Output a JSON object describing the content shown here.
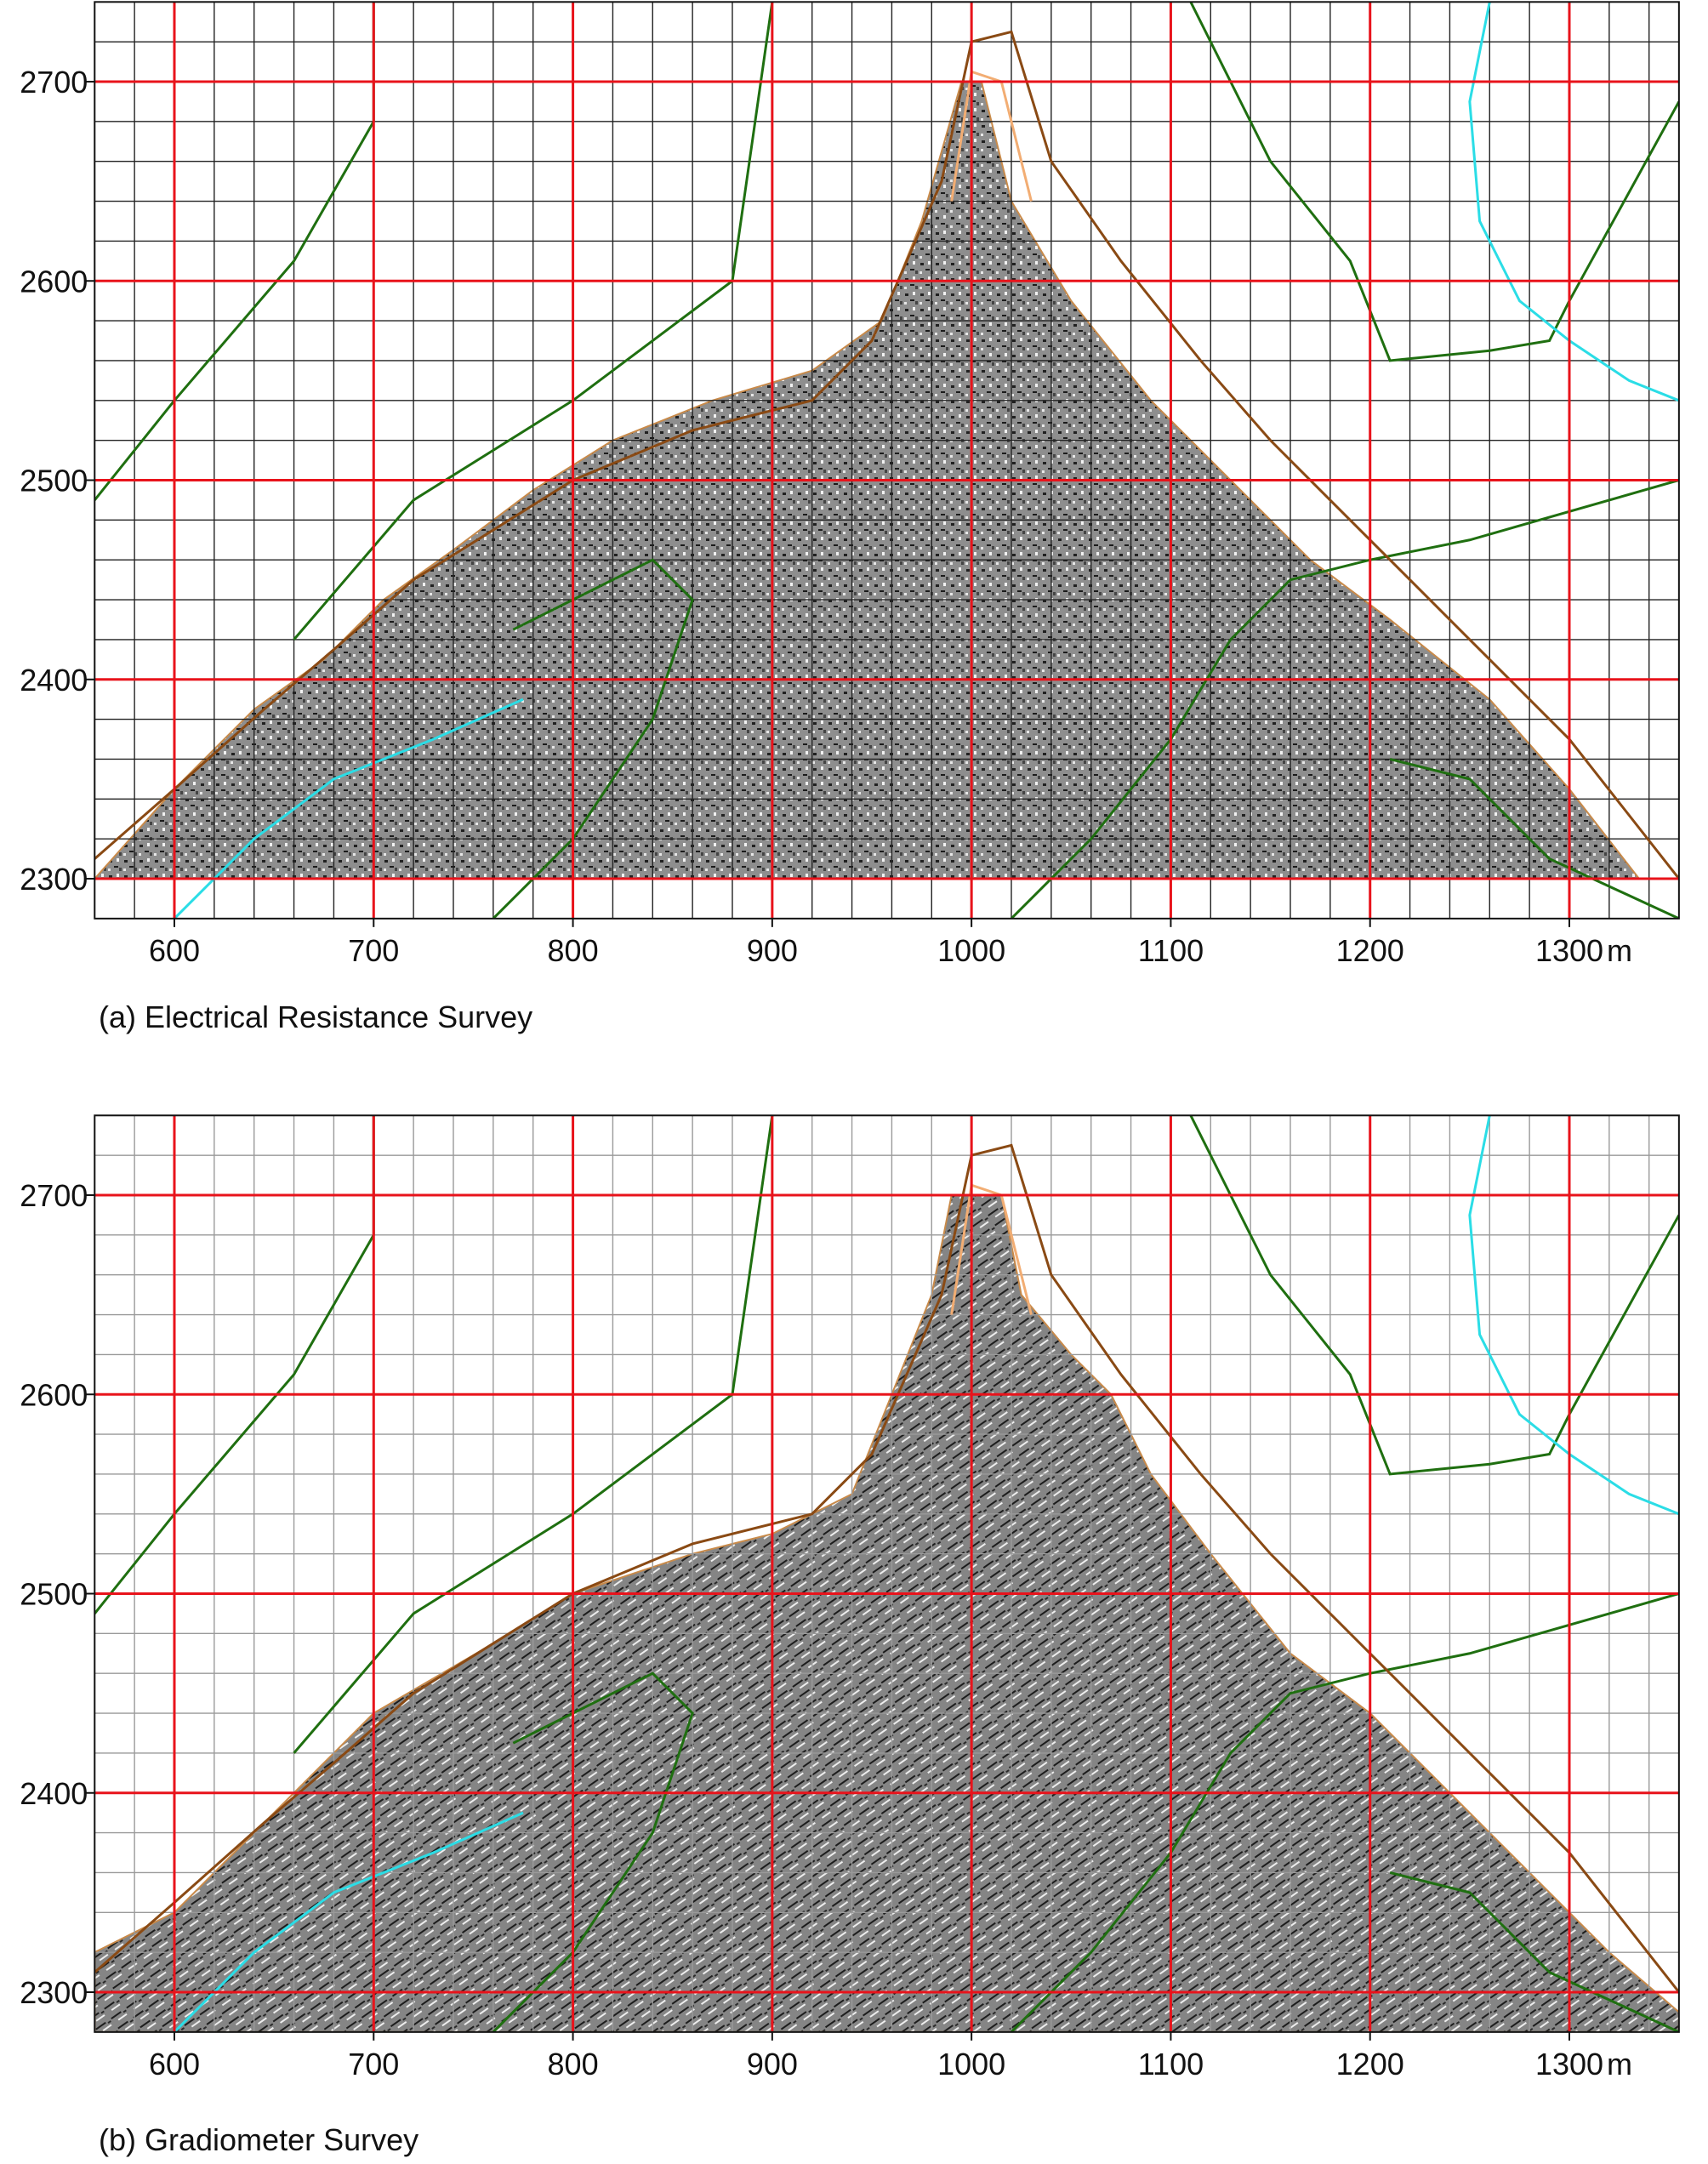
{
  "chart_data": [
    {
      "type": "heatmap",
      "panel_label": "(a) Electrical Resistance Survey",
      "x_ticks": [
        600,
        700,
        800,
        900,
        1000,
        1100,
        1200,
        1300
      ],
      "x_unit": "m",
      "y_ticks": [
        2300,
        2400,
        2500,
        2600,
        2700
      ],
      "xlim": [
        560,
        1355
      ],
      "ylim": [
        2280,
        2740
      ],
      "major_grid_step": 100,
      "minor_grid_step": 20,
      "survey_boundary": [
        [
          560,
          2300
        ],
        [
          600,
          2345
        ],
        [
          640,
          2385
        ],
        [
          675,
          2410
        ],
        [
          705,
          2440
        ],
        [
          740,
          2465
        ],
        [
          780,
          2495
        ],
        [
          820,
          2520
        ],
        [
          870,
          2540
        ],
        [
          920,
          2555
        ],
        [
          955,
          2580
        ],
        [
          975,
          2630
        ],
        [
          995,
          2700
        ],
        [
          1005,
          2700
        ],
        [
          1020,
          2640
        ],
        [
          1050,
          2590
        ],
        [
          1090,
          2540
        ],
        [
          1130,
          2500
        ],
        [
          1170,
          2460
        ],
        [
          1210,
          2430
        ],
        [
          1260,
          2390
        ],
        [
          1300,
          2345
        ],
        [
          1335,
          2300
        ]
      ],
      "contours": [
        {
          "color": "#1f6f10",
          "points": [
            [
              560,
              2490
            ],
            [
              600,
              2540
            ],
            [
              660,
              2610
            ],
            [
              700,
              2680
            ],
            [
              700,
              2740
            ]
          ]
        },
        {
          "color": "#1f6f10",
          "points": [
            [
              660,
              2420
            ],
            [
              720,
              2490
            ],
            [
              800,
              2540
            ],
            [
              880,
              2600
            ],
            [
              900,
              2740
            ]
          ]
        },
        {
          "color": "#1f6f10",
          "points": [
            [
              770,
              2425
            ],
            [
              840,
              2460
            ],
            [
              860,
              2440
            ],
            [
              840,
              2380
            ],
            [
              800,
              2320
            ],
            [
              760,
              2280
            ]
          ]
        },
        {
          "color": "#1f6f10",
          "points": [
            [
              1020,
              2280
            ],
            [
              1060,
              2320
            ],
            [
              1100,
              2370
            ],
            [
              1130,
              2420
            ],
            [
              1160,
              2450
            ],
            [
              1200,
              2460
            ],
            [
              1250,
              2470
            ],
            [
              1355,
              2500
            ]
          ]
        },
        {
          "color": "#1f6f10",
          "points": [
            [
              1110,
              2740
            ],
            [
              1150,
              2660
            ],
            [
              1190,
              2610
            ],
            [
              1210,
              2560
            ],
            [
              1260,
              2565
            ],
            [
              1290,
              2570
            ],
            [
              1300,
              2590
            ],
            [
              1355,
              2690
            ]
          ]
        },
        {
          "color": "#1f6f10",
          "points": [
            [
              1210,
              2360
            ],
            [
              1250,
              2350
            ],
            [
              1290,
              2310
            ],
            [
              1355,
              2280
            ]
          ]
        },
        {
          "color": "#2bdde6",
          "points": [
            [
              1260,
              2740
            ],
            [
              1250,
              2690
            ],
            [
              1255,
              2630
            ],
            [
              1275,
              2590
            ],
            [
              1300,
              2570
            ],
            [
              1330,
              2550
            ],
            [
              1355,
              2540
            ]
          ]
        },
        {
          "color": "#2bdde6",
          "points": [
            [
              600,
              2280
            ],
            [
              640,
              2320
            ],
            [
              680,
              2350
            ],
            [
              730,
              2370
            ],
            [
              775,
              2390
            ]
          ]
        },
        {
          "color": "#8a4a14",
          "points": [
            [
              560,
              2310
            ],
            [
              600,
              2345
            ],
            [
              645,
              2385
            ],
            [
              680,
              2415
            ],
            [
              720,
              2450
            ],
            [
              760,
              2475
            ],
            [
              800,
              2500
            ],
            [
              860,
              2525
            ],
            [
              920,
              2540
            ],
            [
              950,
              2570
            ],
            [
              985,
              2650
            ],
            [
              1000,
              2720
            ],
            [
              1020,
              2725
            ],
            [
              1040,
              2660
            ],
            [
              1075,
              2610
            ],
            [
              1115,
              2560
            ],
            [
              1150,
              2520
            ],
            [
              1200,
              2470
            ],
            [
              1250,
              2420
            ],
            [
              1300,
              2370
            ],
            [
              1355,
              2300
            ]
          ]
        },
        {
          "color": "#f2ad73",
          "points": [
            [
              990,
              2640
            ],
            [
              1000,
              2705
            ],
            [
              1015,
              2700
            ],
            [
              1030,
              2640
            ]
          ]
        }
      ]
    },
    {
      "type": "heatmap",
      "panel_label": "(b) Gradiometer Survey",
      "x_ticks": [
        600,
        700,
        800,
        900,
        1000,
        1100,
        1200,
        1300
      ],
      "x_unit": "m",
      "y_ticks": [
        2300,
        2400,
        2500,
        2600,
        2700
      ],
      "xlim": [
        560,
        1355
      ],
      "ylim": [
        2280,
        2740
      ],
      "major_grid_step": 100,
      "minor_grid_step": 20,
      "survey_boundary": [
        [
          560,
          2280
        ],
        [
          560,
          2320
        ],
        [
          600,
          2340
        ],
        [
          620,
          2360
        ],
        [
          640,
          2380
        ],
        [
          660,
          2400
        ],
        [
          680,
          2420
        ],
        [
          700,
          2440
        ],
        [
          760,
          2475
        ],
        [
          800,
          2500
        ],
        [
          860,
          2520
        ],
        [
          900,
          2530
        ],
        [
          940,
          2550
        ],
        [
          960,
          2600
        ],
        [
          980,
          2650
        ],
        [
          990,
          2700
        ],
        [
          1015,
          2700
        ],
        [
          1025,
          2650
        ],
        [
          1050,
          2620
        ],
        [
          1070,
          2600
        ],
        [
          1090,
          2560
        ],
        [
          1120,
          2520
        ],
        [
          1160,
          2470
        ],
        [
          1200,
          2440
        ],
        [
          1240,
          2400
        ],
        [
          1280,
          2360
        ],
        [
          1320,
          2320
        ],
        [
          1355,
          2290
        ],
        [
          1355,
          2280
        ]
      ],
      "contours": [
        {
          "color": "#1f6f10",
          "points": [
            [
              560,
              2490
            ],
            [
              600,
              2540
            ],
            [
              660,
              2610
            ],
            [
              700,
              2680
            ],
            [
              700,
              2740
            ]
          ]
        },
        {
          "color": "#1f6f10",
          "points": [
            [
              660,
              2420
            ],
            [
              720,
              2490
            ],
            [
              800,
              2540
            ],
            [
              880,
              2600
            ],
            [
              900,
              2740
            ]
          ]
        },
        {
          "color": "#1f6f10",
          "points": [
            [
              770,
              2425
            ],
            [
              840,
              2460
            ],
            [
              860,
              2440
            ],
            [
              840,
              2380
            ],
            [
              800,
              2320
            ],
            [
              760,
              2280
            ]
          ]
        },
        {
          "color": "#1f6f10",
          "points": [
            [
              1020,
              2280
            ],
            [
              1060,
              2320
            ],
            [
              1100,
              2370
            ],
            [
              1130,
              2420
            ],
            [
              1160,
              2450
            ],
            [
              1200,
              2460
            ],
            [
              1250,
              2470
            ],
            [
              1355,
              2500
            ]
          ]
        },
        {
          "color": "#1f6f10",
          "points": [
            [
              1110,
              2740
            ],
            [
              1150,
              2660
            ],
            [
              1190,
              2610
            ],
            [
              1210,
              2560
            ],
            [
              1260,
              2565
            ],
            [
              1290,
              2570
            ],
            [
              1300,
              2590
            ],
            [
              1355,
              2690
            ]
          ]
        },
        {
          "color": "#1f6f10",
          "points": [
            [
              1210,
              2360
            ],
            [
              1250,
              2350
            ],
            [
              1290,
              2310
            ],
            [
              1355,
              2280
            ]
          ]
        },
        {
          "color": "#2bdde6",
          "points": [
            [
              1260,
              2740
            ],
            [
              1250,
              2690
            ],
            [
              1255,
              2630
            ],
            [
              1275,
              2590
            ],
            [
              1300,
              2570
            ],
            [
              1330,
              2550
            ],
            [
              1355,
              2540
            ]
          ]
        },
        {
          "color": "#2bdde6",
          "points": [
            [
              600,
              2280
            ],
            [
              640,
              2320
            ],
            [
              680,
              2350
            ],
            [
              730,
              2370
            ],
            [
              775,
              2390
            ]
          ]
        },
        {
          "color": "#8a4a14",
          "points": [
            [
              560,
              2310
            ],
            [
              600,
              2345
            ],
            [
              645,
              2385
            ],
            [
              680,
              2415
            ],
            [
              720,
              2450
            ],
            [
              760,
              2475
            ],
            [
              800,
              2500
            ],
            [
              860,
              2525
            ],
            [
              920,
              2540
            ],
            [
              950,
              2570
            ],
            [
              985,
              2650
            ],
            [
              1000,
              2720
            ],
            [
              1020,
              2725
            ],
            [
              1040,
              2660
            ],
            [
              1075,
              2610
            ],
            [
              1115,
              2560
            ],
            [
              1150,
              2520
            ],
            [
              1200,
              2470
            ],
            [
              1250,
              2420
            ],
            [
              1300,
              2370
            ],
            [
              1355,
              2300
            ]
          ]
        },
        {
          "color": "#f2ad73",
          "points": [
            [
              990,
              2640
            ],
            [
              1000,
              2705
            ],
            [
              1015,
              2700
            ],
            [
              1030,
              2640
            ]
          ]
        }
      ]
    }
  ],
  "colors": {
    "major_grid": "#e8131b",
    "minor_grid_a": "#222222",
    "minor_grid_b": "#9a9a9a",
    "survey_fill": "#8e8e8e"
  }
}
